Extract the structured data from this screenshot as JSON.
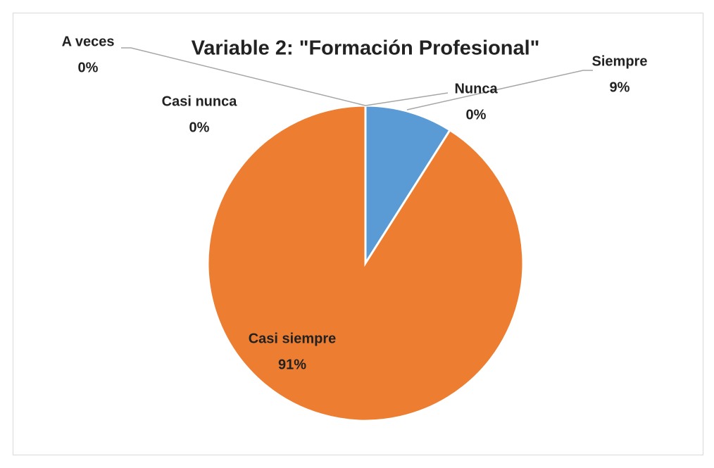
{
  "chart_data": {
    "type": "pie",
    "title": "Variable 2: \"Formación Profesional\"",
    "categories": [
      "Siempre",
      "Casi siempre",
      "A veces",
      "Casi nunca",
      "Nunca"
    ],
    "values": [
      9,
      91,
      0,
      0,
      0
    ],
    "value_labels": [
      "9%",
      "91%",
      "0%",
      "0%",
      "0%"
    ],
    "colors": [
      "#5b9bd5",
      "#ed7d31",
      "#a5a5a5",
      "#ffc000",
      "#4472c4"
    ]
  }
}
